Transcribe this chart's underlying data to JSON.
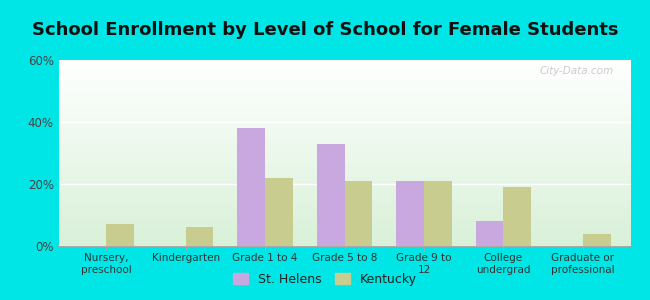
{
  "title": "School Enrollment by Level of School for Female Students",
  "categories": [
    "Nursery,\npreschool",
    "Kindergarten",
    "Grade 1 to 4",
    "Grade 5 to 8",
    "Grade 9 to\n12",
    "College\nundergrad",
    "Graduate or\nprofessional"
  ],
  "st_helens": [
    0,
    0,
    38,
    33,
    21,
    8,
    0
  ],
  "kentucky": [
    7,
    6,
    22,
    21,
    21,
    19,
    4
  ],
  "st_helens_color": "#c9a8e0",
  "kentucky_color": "#c8cc8e",
  "background_color": "#00e5e5",
  "plot_bg_top": "#ffffff",
  "plot_bg_bottom": "#d8f0d8",
  "ylim": [
    0,
    60
  ],
  "yticks": [
    0,
    20,
    40,
    60
  ],
  "ytick_labels": [
    "0%",
    "20%",
    "40%",
    "60%"
  ],
  "bar_width": 0.35,
  "title_fontsize": 13,
  "legend_labels": [
    "St. Helens",
    "Kentucky"
  ],
  "watermark": "City-Data.com"
}
